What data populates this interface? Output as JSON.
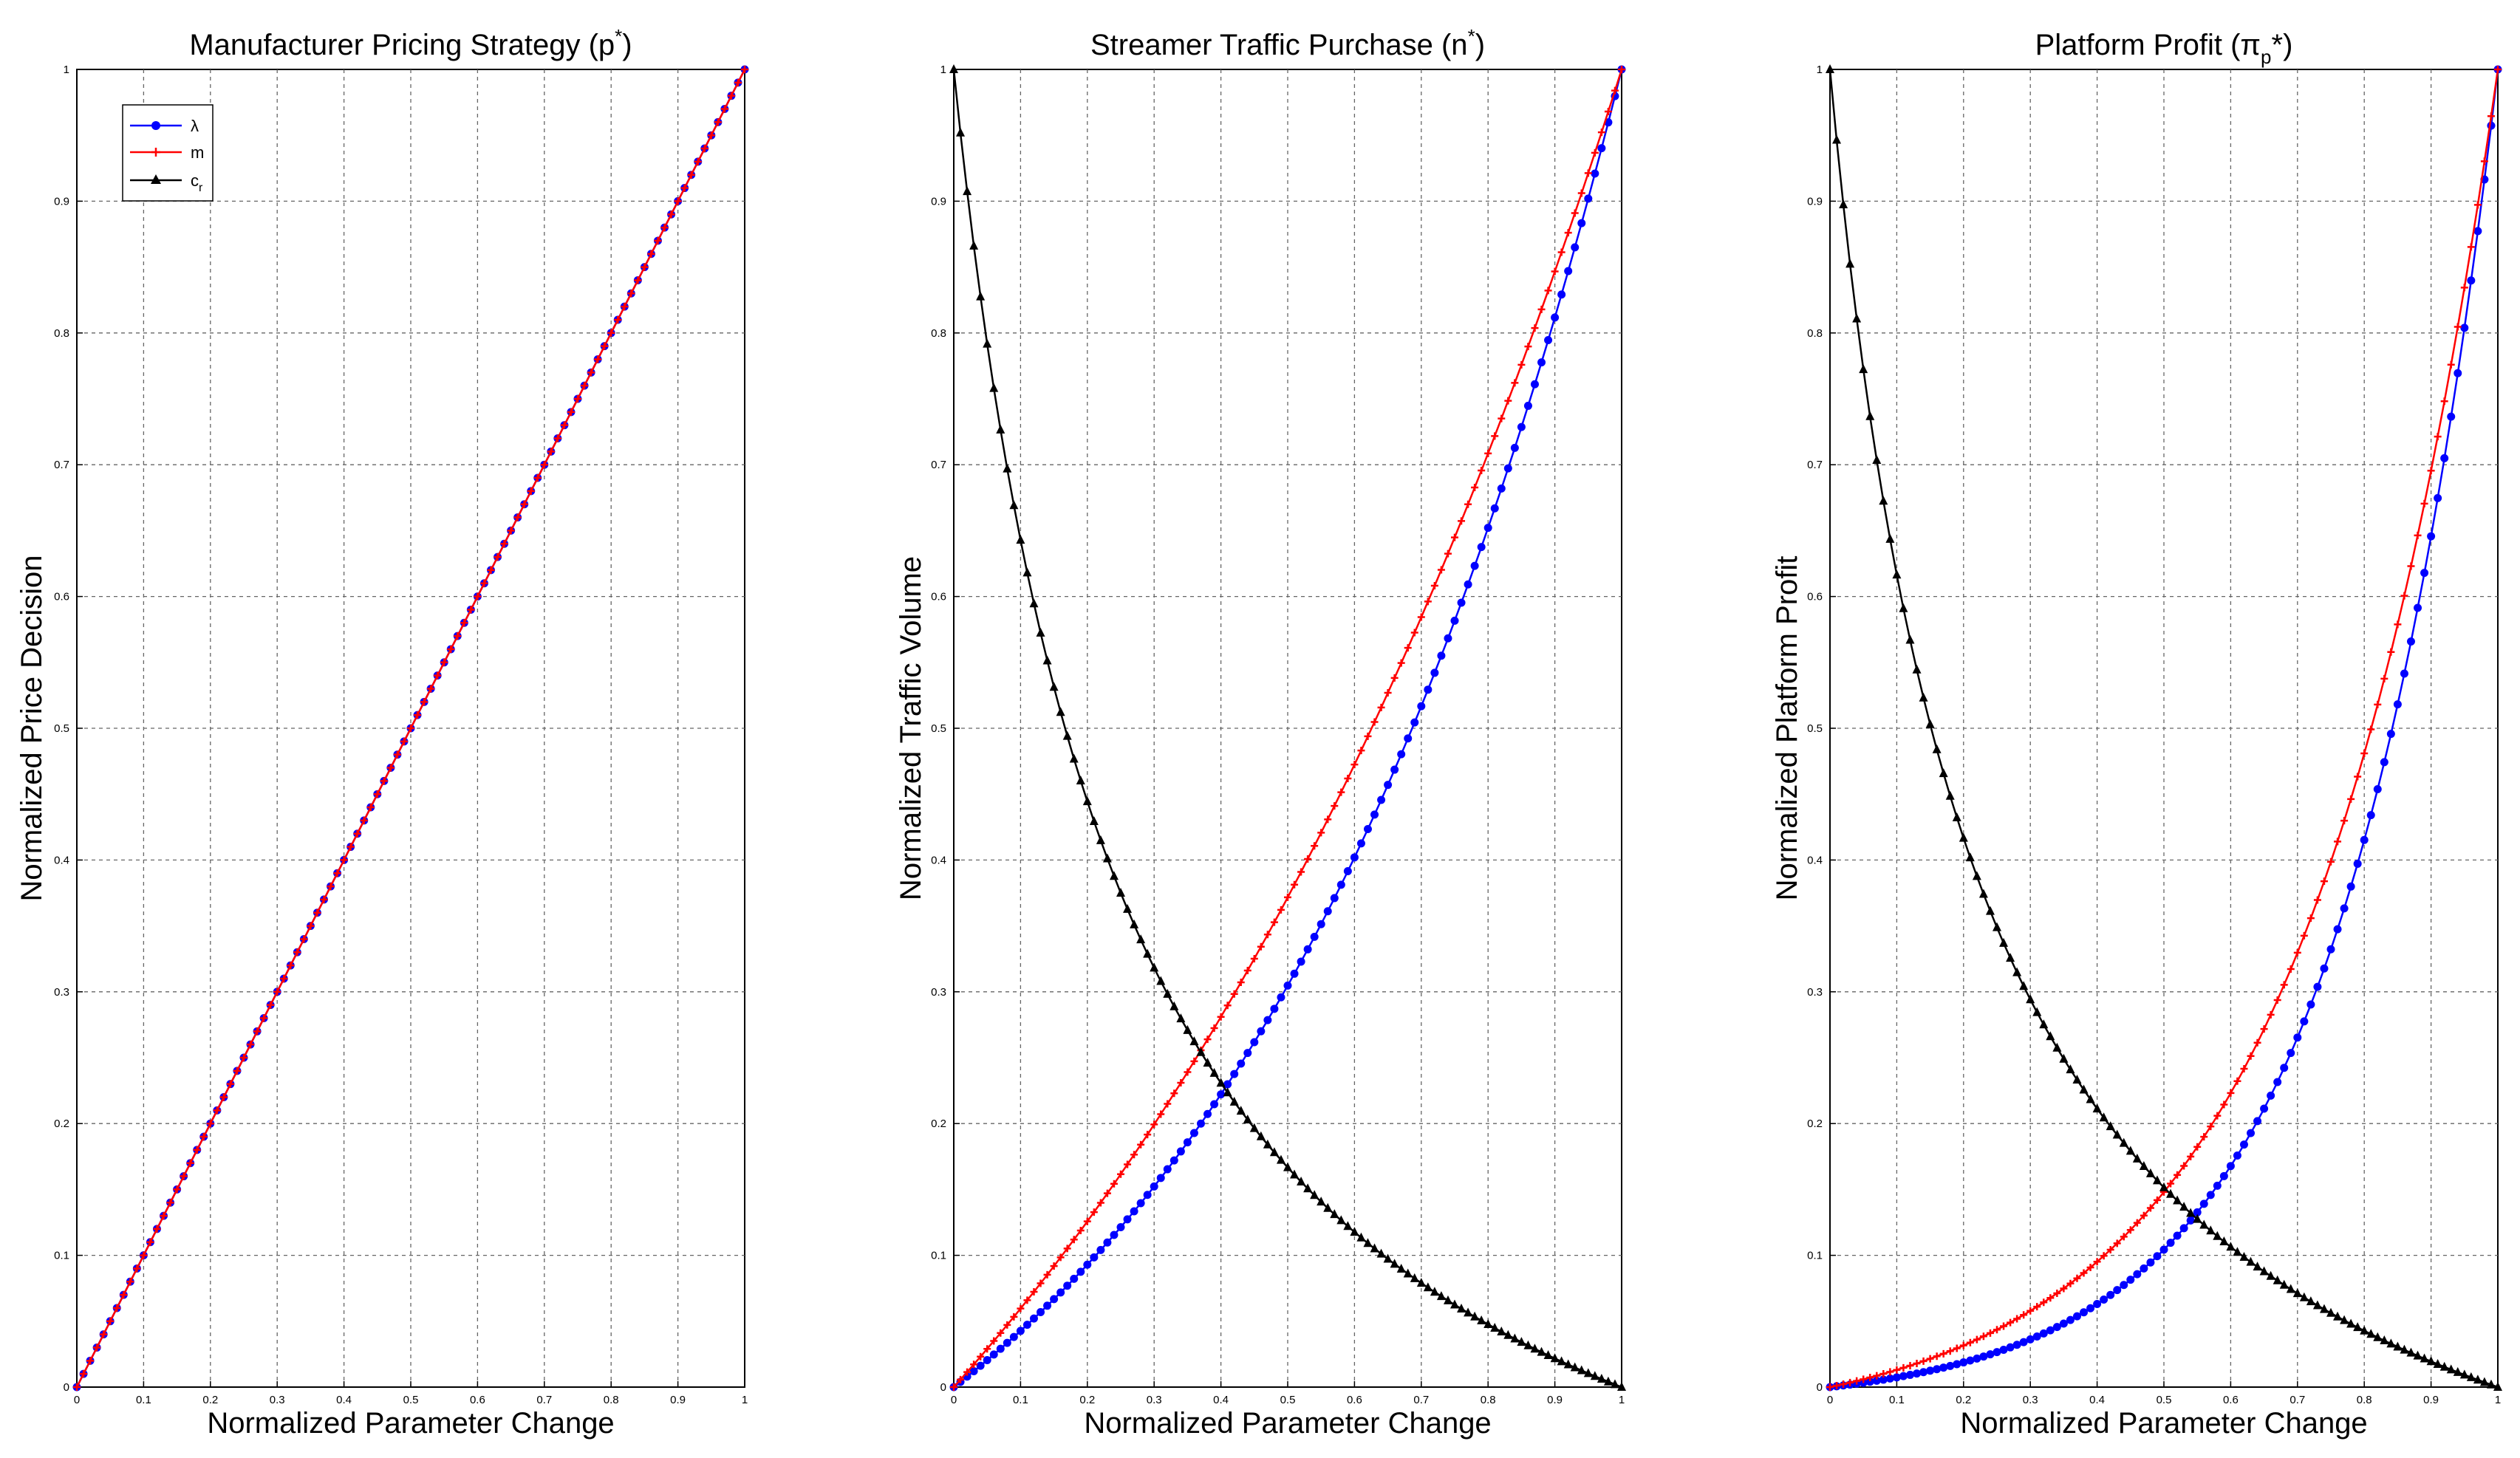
{
  "figure": {
    "x_samples": 101,
    "legend_entries": [
      {
        "id": "lambda",
        "label": "λ",
        "sub": "",
        "color": "#0000ff",
        "marker": "circle"
      },
      {
        "id": "m",
        "label": "m",
        "sub": "",
        "color": "#ff0000",
        "marker": "plus"
      },
      {
        "id": "cr",
        "label": "c",
        "sub": "r",
        "color": "#000000",
        "marker": "triangle"
      }
    ]
  },
  "chart_data": [
    {
      "id": "pricing",
      "type": "line",
      "title": "Manufacturer Pricing Strategy (p",
      "title_sup": "*",
      "title_tail": ")",
      "xlabel": "Normalized Parameter Change",
      "ylabel": "Normalized Price Decision",
      "xlim": [
        0,
        1
      ],
      "ylim": [
        0,
        1
      ],
      "xticks": [
        0,
        0.1,
        0.2,
        0.3,
        0.4,
        0.5,
        0.6,
        0.7,
        0.8,
        0.9,
        1
      ],
      "yticks": [
        0,
        0.1,
        0.2,
        0.3,
        0.4,
        0.5,
        0.6,
        0.7,
        0.8,
        0.9,
        1
      ],
      "xtick_labels": [
        "0",
        "0.1",
        "0.2",
        "0.3",
        "0.4",
        "0.5",
        "0.6",
        "0.7",
        "0.8",
        "0.9",
        "1"
      ],
      "ytick_labels": [
        "0",
        "0.1",
        "0.2",
        "0.3",
        "0.4",
        "0.5",
        "0.6",
        "0.7",
        "0.8",
        "0.9",
        "1"
      ],
      "grid": true,
      "legend": "top-left",
      "series": [
        {
          "name": "λ",
          "formula": "linear",
          "color": "#0000ff",
          "marker": "circle"
        },
        {
          "name": "m",
          "formula": "linear",
          "color": "#ff0000",
          "marker": "plus"
        }
      ]
    },
    {
      "id": "traffic",
      "type": "line",
      "title": "Streamer Traffic Purchase (n",
      "title_sup": "*",
      "title_tail": ")",
      "xlabel": "Normalized Parameter Change",
      "ylabel": "Normalized Traffic Volume",
      "xlim": [
        0,
        1
      ],
      "ylim": [
        0,
        1
      ],
      "xticks": [
        0,
        0.1,
        0.2,
        0.3,
        0.4,
        0.5,
        0.6,
        0.7,
        0.8,
        0.9,
        1
      ],
      "yticks": [
        0,
        0.1,
        0.2,
        0.3,
        0.4,
        0.5,
        0.6,
        0.7,
        0.8,
        0.9,
        1
      ],
      "xtick_labels": [
        "0",
        "0.1",
        "0.2",
        "0.3",
        "0.4",
        "0.5",
        "0.6",
        "0.7",
        "0.8",
        "0.9",
        "1"
      ],
      "ytick_labels": [
        "0",
        "0.1",
        "0.2",
        "0.3",
        "0.4",
        "0.5",
        "0.6",
        "0.7",
        "0.8",
        "0.9",
        "1"
      ],
      "grid": true,
      "series": [
        {
          "name": "λ",
          "formula": "convex",
          "k": 1.65,
          "color": "#0000ff",
          "marker": "circle"
        },
        {
          "name": "m",
          "formula": "convex",
          "k": 1.05,
          "color": "#ff0000",
          "marker": "plus"
        },
        {
          "name": "c_r",
          "formula": "decaying",
          "a": 4.0,
          "color": "#000000",
          "marker": "triangle"
        }
      ]
    },
    {
      "id": "profit",
      "type": "line",
      "title": "Platform Profit (π",
      "title_sub": "p",
      "title_tail": "*)",
      "xlabel": "Normalized Parameter Change",
      "ylabel": "Normalized Platform Profit",
      "xlim": [
        0,
        1
      ],
      "ylim": [
        0,
        1
      ],
      "xticks": [
        0,
        0.1,
        0.2,
        0.3,
        0.4,
        0.5,
        0.6,
        0.7,
        0.8,
        0.9,
        1
      ],
      "yticks": [
        0,
        0.1,
        0.2,
        0.3,
        0.4,
        0.5,
        0.6,
        0.7,
        0.8,
        0.9,
        1
      ],
      "xtick_labels": [
        "0",
        "0.1",
        "0.2",
        "0.3",
        "0.4",
        "0.5",
        "0.6",
        "0.7",
        "0.8",
        "0.9",
        "1"
      ],
      "ytick_labels": [
        "0",
        "0.1",
        "0.2",
        "0.3",
        "0.4",
        "0.5",
        "0.6",
        "0.7",
        "0.8",
        "0.9",
        "1"
      ],
      "grid": true,
      "series": [
        {
          "name": "λ",
          "formula": "convex",
          "k": 4.3,
          "color": "#0000ff",
          "marker": "circle"
        },
        {
          "name": "m",
          "formula": "convex",
          "k": 3.5,
          "color": "#ff0000",
          "marker": "plus"
        },
        {
          "name": "c_r",
          "formula": "decaying",
          "a": 4.6,
          "color": "#000000",
          "marker": "triangle"
        }
      ]
    }
  ]
}
